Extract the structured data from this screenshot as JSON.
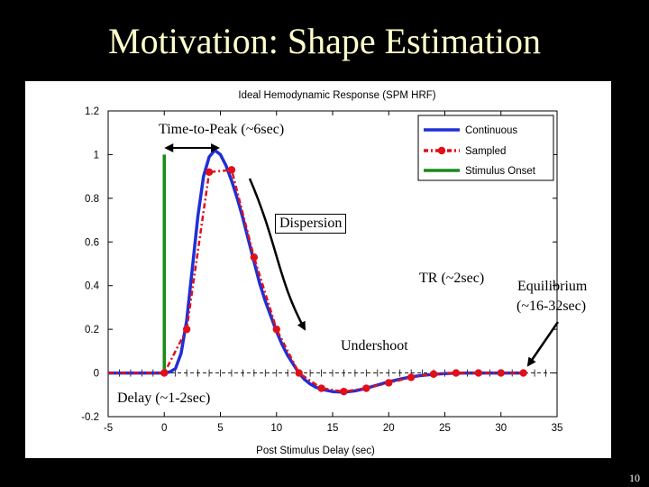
{
  "slide": {
    "title": "Motivation: Shape Estimation",
    "page_number": "10"
  },
  "annotations": {
    "time_to_peak": "Time-to-Peak (~6sec)",
    "dispersion": "Dispersion",
    "tr": "TR (~2sec)",
    "equilibrium_line1": "Equilibrium",
    "equilibrium_line2": "(~16-32sec)",
    "undershoot": "Undershoot",
    "delay": "Delay (~1-2sec)"
  },
  "colors": {
    "continuous": "#1f2fd6",
    "sampled": "#e0101a",
    "onset": "#1a8a1a",
    "title": "#ffffcc"
  },
  "chart_data": {
    "type": "line",
    "title": "Ideal Hemodynamic Response (SPM HRF)",
    "xlabel": "Post Stimulus Delay (sec)",
    "ylabel": "",
    "xlim": [
      -5,
      35
    ],
    "ylim": [
      -0.2,
      1.2
    ],
    "xticks": [
      -5,
      0,
      5,
      10,
      15,
      20,
      25,
      30,
      35
    ],
    "yticks": [
      -0.2,
      0,
      0.2,
      0.4,
      0.6,
      0.8,
      1,
      1.2
    ],
    "xtick_labels": [
      "-5",
      "0",
      "5",
      "10",
      "15",
      "20",
      "25",
      "30",
      "35"
    ],
    "ytick_labels": [
      "-0.2",
      "0",
      "0.2",
      "0.4",
      "0.6",
      "0.8",
      "1",
      "1.2"
    ],
    "legend": [
      "Continuous",
      "Sampled",
      "Stimulus Onset"
    ],
    "legend_position": "top-right",
    "series": [
      {
        "name": "Continuous",
        "x": [
          -5,
          -4,
          -3,
          -2,
          -1,
          0,
          0.5,
          1,
          1.5,
          2,
          2.5,
          3,
          3.5,
          4,
          4.5,
          5,
          5.5,
          6,
          6.5,
          7,
          7.5,
          8,
          8.5,
          9,
          9.5,
          10,
          10.5,
          11,
          11.5,
          12,
          12.5,
          13,
          13.5,
          14,
          15,
          16,
          17,
          18,
          19,
          20,
          21,
          22,
          23,
          24,
          25,
          26,
          27,
          28,
          29,
          30,
          31,
          32
        ],
        "y": [
          0,
          0,
          0,
          0,
          0,
          0,
          0.005,
          0.02,
          0.09,
          0.24,
          0.48,
          0.72,
          0.9,
          0.99,
          1.02,
          1.0,
          0.95,
          0.88,
          0.8,
          0.71,
          0.61,
          0.51,
          0.41,
          0.33,
          0.26,
          0.19,
          0.13,
          0.08,
          0.04,
          0.0,
          -0.03,
          -0.05,
          -0.065,
          -0.075,
          -0.085,
          -0.088,
          -0.082,
          -0.07,
          -0.055,
          -0.04,
          -0.028,
          -0.018,
          -0.011,
          -0.006,
          -0.003,
          -0.001,
          0,
          0,
          0,
          0,
          0,
          0
        ]
      },
      {
        "name": "Sampled",
        "x": [
          -5,
          -4,
          -3,
          -2,
          -1,
          0,
          2,
          4,
          6,
          8,
          10,
          12,
          14,
          16,
          18,
          20,
          22,
          24,
          26,
          28,
          30,
          32
        ],
        "y": [
          0,
          0,
          0,
          0,
          0,
          0,
          0.2,
          0.92,
          0.93,
          0.53,
          0.2,
          0.0,
          -0.07,
          -0.085,
          -0.07,
          -0.045,
          -0.02,
          -0.005,
          0,
          0,
          0,
          0
        ]
      }
    ],
    "stimulus_onset": {
      "x": 0,
      "y_range": [
        0,
        1
      ]
    },
    "tr_markers_x": [
      -5,
      -4,
      -3,
      -2,
      -1,
      0,
      1,
      2,
      3,
      4,
      5,
      6,
      7,
      8,
      9,
      10,
      11,
      12,
      13,
      14,
      15,
      16,
      17,
      18,
      19,
      20,
      21,
      22,
      23,
      24,
      25,
      26,
      27,
      28,
      29,
      30,
      31,
      32,
      33,
      34,
      35
    ]
  }
}
